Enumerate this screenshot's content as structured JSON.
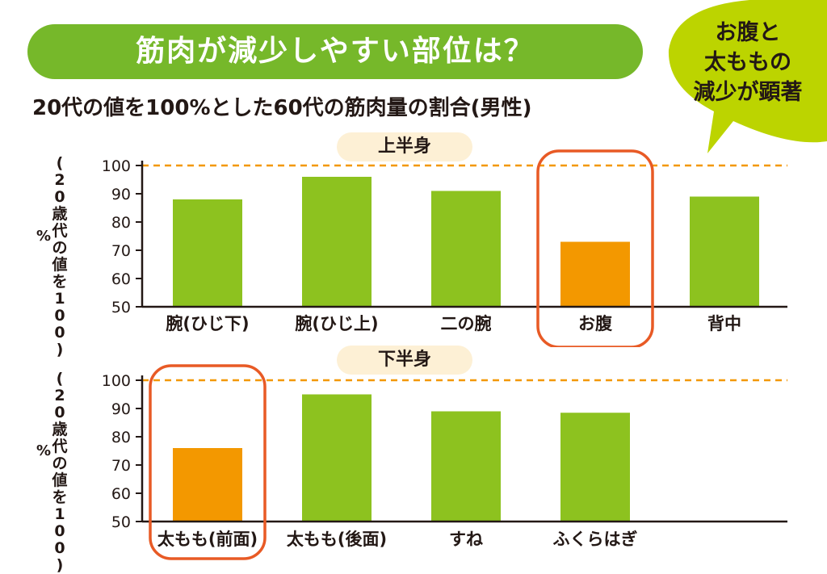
{
  "title": "筋肉が減少しやすい部位は？",
  "subtitle": "20代の値を100%とした60代の筋肉量の割合(男性)",
  "callout": [
    "お腹と",
    "太ももの",
    "減少が顕著"
  ],
  "y_axis_label": "(20歳代の値を100)",
  "y_axis_unit": "%",
  "colors": {
    "normal": "#8dc21f",
    "highlight": "#f39800",
    "reference_line": "#f39800",
    "circle": "#e85a25",
    "banner": "#76b82a",
    "callout": "#bcd400",
    "pill": "#fdf0d5"
  },
  "chart_data": [
    {
      "type": "bar",
      "title": "上半身",
      "categories": [
        "腕(ひじ下)",
        "腕(ひじ上)",
        "二の腕",
        "お腹",
        "背中"
      ],
      "values": [
        88,
        96,
        91,
        73,
        89
      ],
      "highlight": [
        false,
        false,
        false,
        true,
        false
      ],
      "yticks": [
        "100",
        "90",
        "80",
        "70",
        "60",
        "50"
      ],
      "ylim": [
        50,
        100
      ],
      "reference_line": 100
    },
    {
      "type": "bar",
      "title": "下半身",
      "categories": [
        "太もも(前面)",
        "太もも(後面)",
        "すね",
        "ふくらはぎ"
      ],
      "values": [
        76,
        95,
        89,
        88.5
      ],
      "highlight": [
        true,
        false,
        false,
        false
      ],
      "yticks": [
        "100",
        "90",
        "80",
        "70",
        "60",
        "50"
      ],
      "ylim": [
        50,
        100
      ],
      "reference_line": 100
    }
  ]
}
